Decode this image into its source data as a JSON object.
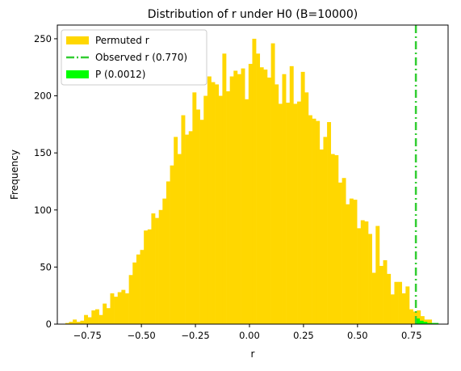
{
  "chart_data": {
    "type": "bar",
    "title": "Distribution of r under H0 (B=10000)",
    "xlabel": "r",
    "ylabel": "Frequency",
    "xlim": [
      -0.889,
      0.919
    ],
    "ylim": [
      0,
      262
    ],
    "xticks": [
      -0.75,
      -0.5,
      -0.25,
      0.0,
      0.25,
      0.5,
      0.75
    ],
    "xtick_labels": [
      "−0.75",
      "−0.50",
      "−0.25",
      "0.00",
      "0.25",
      "0.50",
      "0.75"
    ],
    "yticks": [
      0,
      50,
      100,
      150,
      200,
      250
    ],
    "ytick_labels": [
      "0",
      "50",
      "100",
      "150",
      "200",
      "250"
    ],
    "bin_width": 0.0173,
    "bins_start": -0.852,
    "observed_r": 0.77,
    "colors": {
      "permuted": "#FFD700",
      "tail": "#00FF00",
      "observed_line": "#32CD32"
    },
    "legend": {
      "placement": "top-left",
      "entries": [
        {
          "label": "Permuted r",
          "kind": "patch",
          "color": "#FFD700"
        },
        {
          "label": "Observed r (0.770)",
          "kind": "dashdot-line",
          "color": "#32CD32"
        },
        {
          "label": "P (0.0012)",
          "kind": "patch",
          "color": "#00FF00"
        }
      ]
    },
    "series": [
      {
        "values": [
          1,
          2,
          4,
          2,
          3,
          8,
          6,
          12,
          13,
          8,
          18,
          14,
          27,
          24,
          28,
          30,
          27,
          43,
          54,
          61,
          65,
          82,
          83,
          97,
          93,
          100,
          110,
          125,
          139,
          164,
          149,
          183,
          166,
          169,
          203,
          188,
          179,
          200,
          217,
          212,
          210,
          200,
          237,
          204,
          217,
          222,
          219,
          224,
          197,
          228,
          250,
          237,
          225,
          223,
          216,
          246,
          210,
          193,
          219,
          194,
          226,
          193,
          195,
          221,
          203,
          183,
          180,
          178,
          153,
          164,
          177,
          149,
          148,
          124,
          128,
          105,
          110,
          109,
          84,
          91,
          90,
          79,
          45,
          86,
          51,
          56,
          44,
          26,
          37,
          37,
          27,
          33,
          13,
          11,
          12,
          7,
          4,
          4
        ]
      },
      {
        "values": [
          5,
          3,
          2,
          1,
          1,
          1
        ]
      }
    ]
  }
}
